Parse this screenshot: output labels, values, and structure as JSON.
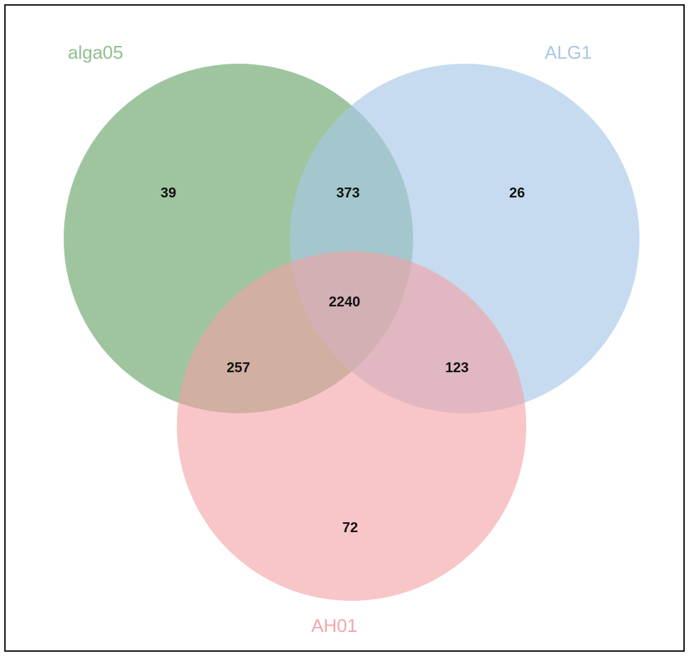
{
  "sets": [
    {
      "key": "alga05",
      "label": "alga05",
      "color": "#7fb17f",
      "label_color": "#8fbf8f"
    },
    {
      "key": "ALG1",
      "label": "ALG1",
      "color": "#a7c8e8",
      "label_color": "#a9c6e4"
    },
    {
      "key": "AH01",
      "label": "AH01",
      "color": "#f4a0a4",
      "label_color": "#f2a7aa"
    }
  ],
  "regions": {
    "alga05_only": "39",
    "alga05_ALG1": "373",
    "ALG1_only": "26",
    "all_three": "2240",
    "alga05_AH01": "257",
    "ALG1_AH01": "123",
    "AH01_only": "72"
  }
}
